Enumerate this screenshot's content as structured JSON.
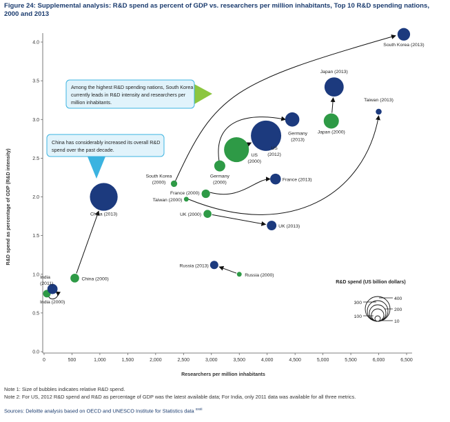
{
  "figure": {
    "title": "Figure 24: Supplemental analysis: R&D spend as percent of GDP vs. researchers per million inhabitants, Top 10 R&D spending nations, 2000 and 2013"
  },
  "callouts": {
    "south_korea_note": "Among the highest R&D spending nations, South Korea currently leads in R&D intensity and researchers per million inhabitants.",
    "china_note": "China has considerably increased its overall R&D spend over the past decade."
  },
  "legend": {
    "title": "R&D spend (US billion dollars)",
    "sizes": [
      "400",
      "300",
      "200",
      "100",
      "10"
    ]
  },
  "notes": {
    "note1": "Note 1: Size of bubbles indicates relative R&D spend.",
    "note2": "Note 2: For US, 2012 R&D spend and R&D as percentage of GDP was the latest available data; For India, only 2011 data was available for all three metrics.",
    "source": "Sources: Deloitte analysis based on OECD and UNESCO Institute for Statistics data",
    "source_sup": "xxvii"
  },
  "colors": {
    "year_2000": "#2e9a46",
    "year_2013": "#1c3a7e",
    "callout_fill": "#e1f3fb",
    "callout_border": "#3bb3e0",
    "callout_pointer_green": "#8cc63f",
    "callout_pointer_blue": "#3bb3e0"
  },
  "chart_data": {
    "type": "scatter",
    "xlabel": "Researchers per million inhabitants",
    "ylabel": "R&D spend as percentage of GDP (R&D intensity)",
    "xlim": [
      0,
      6500
    ],
    "ylim": [
      0,
      4.2
    ],
    "x_ticks": [
      "0",
      "500",
      "1,000",
      "1,500",
      "2,000",
      "2,500",
      "3,000",
      "3,500",
      "4,000",
      "4,500",
      "5,000",
      "5,500",
      "6,000",
      "6,500"
    ],
    "y_ticks": [
      "0.0",
      "0.5",
      "1.0",
      "1.5",
      "2.0",
      "2.5",
      "3.0",
      "3.5",
      "4.0"
    ],
    "points": [
      {
        "label": "India (2000)",
        "x": 50,
        "y": 0.75,
        "spend": 25,
        "year": "2000"
      },
      {
        "label": "India (2011)",
        "x": 150,
        "y": 0.81,
        "spend": 45,
        "year": "2013"
      },
      {
        "label": "China (2000)",
        "x": 550,
        "y": 0.95,
        "spend": 33,
        "year": "2000"
      },
      {
        "label": "China (2013)",
        "x": 1070,
        "y": 2.0,
        "spend": 335,
        "year": "2013"
      },
      {
        "label": "South Korea (2000)",
        "x": 2330,
        "y": 2.17,
        "spend": 18,
        "year": "2000"
      },
      {
        "label": "South Korea (2013)",
        "x": 6450,
        "y": 4.1,
        "spend": 69,
        "year": "2013"
      },
      {
        "label": "Taiwan (2000)",
        "x": 2550,
        "y": 1.97,
        "spend": 10,
        "year": "2000"
      },
      {
        "label": "Taiwan (2013)",
        "x": 6000,
        "y": 3.1,
        "spend": 15,
        "year": "2013"
      },
      {
        "label": "France (2000)",
        "x": 2900,
        "y": 2.04,
        "spend": 31,
        "year": "2000"
      },
      {
        "label": "France (2013)",
        "x": 4150,
        "y": 2.23,
        "spend": 50,
        "year": "2013"
      },
      {
        "label": "UK (2000)",
        "x": 2930,
        "y": 1.78,
        "spend": 28,
        "year": "2000"
      },
      {
        "label": "UK (2013)",
        "x": 4080,
        "y": 1.63,
        "spend": 40,
        "year": "2013"
      },
      {
        "label": "Germany (2000)",
        "x": 3150,
        "y": 2.4,
        "spend": 53,
        "year": "2000"
      },
      {
        "label": "Germany (2013)",
        "x": 4450,
        "y": 3.0,
        "spend": 88,
        "year": "2013"
      },
      {
        "label": "US (2000)",
        "x": 3450,
        "y": 2.61,
        "spend": 270,
        "year": "2000"
      },
      {
        "label": "US (2012)",
        "x": 3980,
        "y": 2.79,
        "spend": 400,
        "year": "2013"
      },
      {
        "label": "Japan (2000)",
        "x": 5150,
        "y": 2.98,
        "spend": 100,
        "year": "2000"
      },
      {
        "label": "Japan (2013)",
        "x": 5200,
        "y": 3.42,
        "spend": 160,
        "year": "2013"
      },
      {
        "label": "Russia (2013)",
        "x": 3050,
        "y": 1.12,
        "spend": 30,
        "year": "2013"
      },
      {
        "label": "Russia (2000)",
        "x": 3500,
        "y": 1.0,
        "spend": 10,
        "year": "2000"
      }
    ]
  }
}
